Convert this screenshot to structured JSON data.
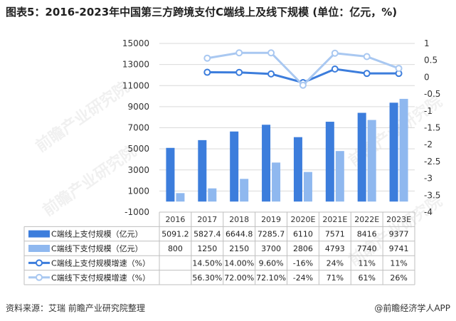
{
  "title": "图表5：2016-2023年中国第三方跨境支付C端线上及线下规模 (单位：亿元，%)",
  "source": "资料来源：艾瑞 前瞻产业研究院整理",
  "publisher": "@前瞻经济学人APP",
  "watermark": "前瞻产业研究院",
  "colors": {
    "online_bar": "#3c7ddc",
    "offline_bar": "#8fb8ef",
    "online_line": "#3c7ddc",
    "offline_line": "#a9c8f1",
    "grid": "#d9d9d9"
  },
  "chart_data": {
    "type": "bar",
    "categories": [
      "2016",
      "2017",
      "2018",
      "2019",
      "2020E",
      "2021E",
      "2022E",
      "2023E"
    ],
    "left_axis": {
      "ylim": [
        -1000,
        15000
      ],
      "ticks": [
        "15000",
        "13000",
        "11000",
        "9000",
        "7000",
        "5000",
        "3000",
        "1000",
        "-1000"
      ]
    },
    "right_axis": {
      "ylim": [
        -4,
        1
      ],
      "ticks": [
        "1",
        "0.5",
        "0",
        "-0.5",
        "-1",
        "-1.5",
        "-2",
        "-2.5",
        "-3",
        "-3.5",
        "-4"
      ]
    },
    "series": [
      {
        "name": "C端线上支付规模（亿元）",
        "type": "bar",
        "axis": "left",
        "values": [
          5091.2,
          5827.4,
          6644.8,
          7285.7,
          6110,
          7571,
          8416,
          9377
        ],
        "labels": [
          "5091.2",
          "5827.4",
          "6644.8",
          "7285.7",
          "6110",
          "7571",
          "8416",
          "9377"
        ]
      },
      {
        "name": "C端线下支付规模（亿元）",
        "type": "bar",
        "axis": "left",
        "values": [
          800,
          1250,
          2150,
          3700,
          2806,
          4793,
          7740,
          9741
        ],
        "labels": [
          "800",
          "1250",
          "2150",
          "3700",
          "2806",
          "4793",
          "7740",
          "9741"
        ]
      },
      {
        "name": "C端线上支付规模增速（%）",
        "type": "line",
        "axis": "right",
        "values": [
          null,
          0.145,
          0.14,
          0.096,
          -0.16,
          0.24,
          0.11,
          0.11
        ],
        "labels": [
          "",
          "14.50%",
          "14.00%",
          "9.60%",
          "-16%",
          "24%",
          "11%",
          "11%"
        ]
      },
      {
        "name": "C端线下支付规模增速（%）",
        "type": "line",
        "axis": "right",
        "values": [
          null,
          0.563,
          0.72,
          0.721,
          -0.24,
          0.71,
          0.61,
          0.26
        ],
        "labels": [
          "",
          "56.30%",
          "72.00%",
          "72.10%",
          "-24%",
          "71%",
          "61%",
          "26%"
        ]
      }
    ]
  }
}
